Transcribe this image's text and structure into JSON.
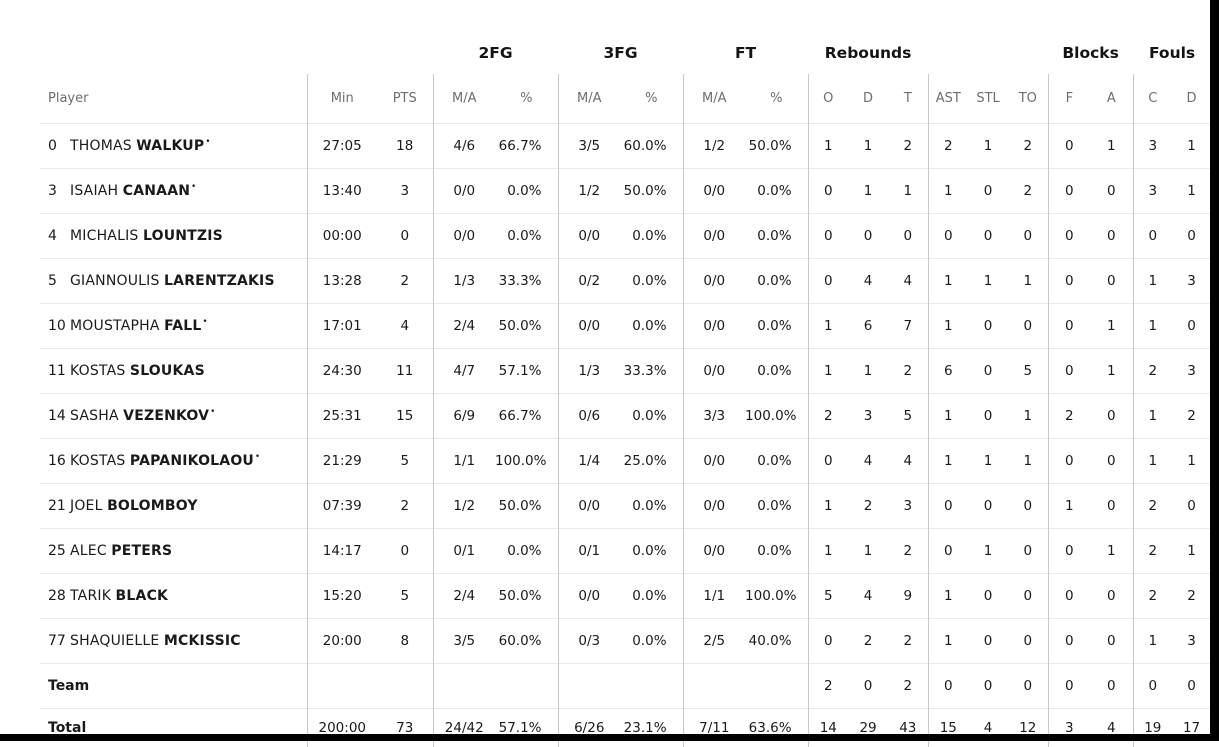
{
  "table": {
    "starter_mark": "•",
    "group_headers": [
      {
        "label": "",
        "span": 3
      },
      {
        "label": "2FG",
        "span": 2
      },
      {
        "label": "3FG",
        "span": 2
      },
      {
        "label": "FT",
        "span": 2
      },
      {
        "label": "Rebounds",
        "span": 3
      },
      {
        "label": "",
        "span": 3
      },
      {
        "label": "Blocks",
        "span": 2
      },
      {
        "label": "Fouls",
        "span": 2
      }
    ],
    "sub_headers": [
      "Player",
      "Min",
      "PTS",
      "M/A",
      "%",
      "M/A",
      "%",
      "M/A",
      "%",
      "O",
      "D",
      "T",
      "AST",
      "STL",
      "TO",
      "F",
      "A",
      "C",
      "D"
    ],
    "players": [
      {
        "num": "0",
        "first": "THOMAS",
        "last": "WALKUP",
        "starter": true,
        "min": "27:05",
        "pts": "18",
        "fg2_ma": "4/6",
        "fg2_pct": "66.7%",
        "fg3_ma": "3/5",
        "fg3_pct": "60.0%",
        "ft_ma": "1/2",
        "ft_pct": "50.0%",
        "reb_o": "1",
        "reb_d": "1",
        "reb_t": "2",
        "ast": "2",
        "stl": "1",
        "to": "2",
        "blk_f": "0",
        "blk_a": "1",
        "foul_c": "3",
        "foul_d": "1"
      },
      {
        "num": "3",
        "first": "ISAIAH",
        "last": "CANAAN",
        "starter": true,
        "min": "13:40",
        "pts": "3",
        "fg2_ma": "0/0",
        "fg2_pct": "0.0%",
        "fg3_ma": "1/2",
        "fg3_pct": "50.0%",
        "ft_ma": "0/0",
        "ft_pct": "0.0%",
        "reb_o": "0",
        "reb_d": "1",
        "reb_t": "1",
        "ast": "1",
        "stl": "0",
        "to": "2",
        "blk_f": "0",
        "blk_a": "0",
        "foul_c": "3",
        "foul_d": "1"
      },
      {
        "num": "4",
        "first": "MICHALIS",
        "last": "LOUNTZIS",
        "starter": false,
        "min": "00:00",
        "pts": "0",
        "fg2_ma": "0/0",
        "fg2_pct": "0.0%",
        "fg3_ma": "0/0",
        "fg3_pct": "0.0%",
        "ft_ma": "0/0",
        "ft_pct": "0.0%",
        "reb_o": "0",
        "reb_d": "0",
        "reb_t": "0",
        "ast": "0",
        "stl": "0",
        "to": "0",
        "blk_f": "0",
        "blk_a": "0",
        "foul_c": "0",
        "foul_d": "0"
      },
      {
        "num": "5",
        "first": "GIANNOULIS",
        "last": "LARENTZAKIS",
        "starter": false,
        "min": "13:28",
        "pts": "2",
        "fg2_ma": "1/3",
        "fg2_pct": "33.3%",
        "fg3_ma": "0/2",
        "fg3_pct": "0.0%",
        "ft_ma": "0/0",
        "ft_pct": "0.0%",
        "reb_o": "0",
        "reb_d": "4",
        "reb_t": "4",
        "ast": "1",
        "stl": "1",
        "to": "1",
        "blk_f": "0",
        "blk_a": "0",
        "foul_c": "1",
        "foul_d": "3"
      },
      {
        "num": "10",
        "first": "MOUSTAPHA",
        "last": "FALL",
        "starter": true,
        "min": "17:01",
        "pts": "4",
        "fg2_ma": "2/4",
        "fg2_pct": "50.0%",
        "fg3_ma": "0/0",
        "fg3_pct": "0.0%",
        "ft_ma": "0/0",
        "ft_pct": "0.0%",
        "reb_o": "1",
        "reb_d": "6",
        "reb_t": "7",
        "ast": "1",
        "stl": "0",
        "to": "0",
        "blk_f": "0",
        "blk_a": "1",
        "foul_c": "1",
        "foul_d": "0"
      },
      {
        "num": "11",
        "first": "KOSTAS",
        "last": "SLOUKAS",
        "starter": false,
        "min": "24:30",
        "pts": "11",
        "fg2_ma": "4/7",
        "fg2_pct": "57.1%",
        "fg3_ma": "1/3",
        "fg3_pct": "33.3%",
        "ft_ma": "0/0",
        "ft_pct": "0.0%",
        "reb_o": "1",
        "reb_d": "1",
        "reb_t": "2",
        "ast": "6",
        "stl": "0",
        "to": "5",
        "blk_f": "0",
        "blk_a": "1",
        "foul_c": "2",
        "foul_d": "3"
      },
      {
        "num": "14",
        "first": "SASHA",
        "last": "VEZENKOV",
        "starter": true,
        "min": "25:31",
        "pts": "15",
        "fg2_ma": "6/9",
        "fg2_pct": "66.7%",
        "fg3_ma": "0/6",
        "fg3_pct": "0.0%",
        "ft_ma": "3/3",
        "ft_pct": "100.0%",
        "reb_o": "2",
        "reb_d": "3",
        "reb_t": "5",
        "ast": "1",
        "stl": "0",
        "to": "1",
        "blk_f": "2",
        "blk_a": "0",
        "foul_c": "1",
        "foul_d": "2"
      },
      {
        "num": "16",
        "first": "KOSTAS",
        "last": "PAPANIKOLAOU",
        "starter": true,
        "min": "21:29",
        "pts": "5",
        "fg2_ma": "1/1",
        "fg2_pct": "100.0%",
        "fg3_ma": "1/4",
        "fg3_pct": "25.0%",
        "ft_ma": "0/0",
        "ft_pct": "0.0%",
        "reb_o": "0",
        "reb_d": "4",
        "reb_t": "4",
        "ast": "1",
        "stl": "1",
        "to": "1",
        "blk_f": "0",
        "blk_a": "0",
        "foul_c": "1",
        "foul_d": "1"
      },
      {
        "num": "21",
        "first": "JOEL",
        "last": "BOLOMBOY",
        "starter": false,
        "min": "07:39",
        "pts": "2",
        "fg2_ma": "1/2",
        "fg2_pct": "50.0%",
        "fg3_ma": "0/0",
        "fg3_pct": "0.0%",
        "ft_ma": "0/0",
        "ft_pct": "0.0%",
        "reb_o": "1",
        "reb_d": "2",
        "reb_t": "3",
        "ast": "0",
        "stl": "0",
        "to": "0",
        "blk_f": "1",
        "blk_a": "0",
        "foul_c": "2",
        "foul_d": "0"
      },
      {
        "num": "25",
        "first": "ALEC",
        "last": "PETERS",
        "starter": false,
        "min": "14:17",
        "pts": "0",
        "fg2_ma": "0/1",
        "fg2_pct": "0.0%",
        "fg3_ma": "0/1",
        "fg3_pct": "0.0%",
        "ft_ma": "0/0",
        "ft_pct": "0.0%",
        "reb_o": "1",
        "reb_d": "1",
        "reb_t": "2",
        "ast": "0",
        "stl": "1",
        "to": "0",
        "blk_f": "0",
        "blk_a": "1",
        "foul_c": "2",
        "foul_d": "1"
      },
      {
        "num": "28",
        "first": "TARIK",
        "last": "BLACK",
        "starter": false,
        "min": "15:20",
        "pts": "5",
        "fg2_ma": "2/4",
        "fg2_pct": "50.0%",
        "fg3_ma": "0/0",
        "fg3_pct": "0.0%",
        "ft_ma": "1/1",
        "ft_pct": "100.0%",
        "reb_o": "5",
        "reb_d": "4",
        "reb_t": "9",
        "ast": "1",
        "stl": "0",
        "to": "0",
        "blk_f": "0",
        "blk_a": "0",
        "foul_c": "2",
        "foul_d": "2"
      },
      {
        "num": "77",
        "first": "SHAQUIELLE",
        "last": "MCKISSIC",
        "starter": false,
        "min": "20:00",
        "pts": "8",
        "fg2_ma": "3/5",
        "fg2_pct": "60.0%",
        "fg3_ma": "0/3",
        "fg3_pct": "0.0%",
        "ft_ma": "2/5",
        "ft_pct": "40.0%",
        "reb_o": "0",
        "reb_d": "2",
        "reb_t": "2",
        "ast": "1",
        "stl": "0",
        "to": "0",
        "blk_f": "0",
        "blk_a": "0",
        "foul_c": "1",
        "foul_d": "3"
      }
    ],
    "team_row": {
      "label": "Team",
      "reb_o": "2",
      "reb_d": "0",
      "reb_t": "2",
      "ast": "0",
      "stl": "0",
      "to": "0",
      "blk_f": "0",
      "blk_a": "0",
      "foul_c": "0",
      "foul_d": "0"
    },
    "total_row": {
      "label": "Total",
      "min": "200:00",
      "pts": "73",
      "fg2_ma": "24/42",
      "fg2_pct": "57.1%",
      "fg3_ma": "6/26",
      "fg3_pct": "23.1%",
      "ft_ma": "7/11",
      "ft_pct": "63.6%",
      "reb_o": "14",
      "reb_d": "29",
      "reb_t": "43",
      "ast": "15",
      "stl": "4",
      "to": "12",
      "blk_f": "3",
      "blk_a": "4",
      "foul_c": "19",
      "foul_d": "17"
    }
  },
  "colors": {
    "page_bg": "#ffffff",
    "edge_bars": "#000000",
    "column_divider": "#c9c9c9",
    "row_separator": "#eaeaea",
    "muted_header_text": "#6e6e6e",
    "data_text": "#1a1a1a"
  }
}
